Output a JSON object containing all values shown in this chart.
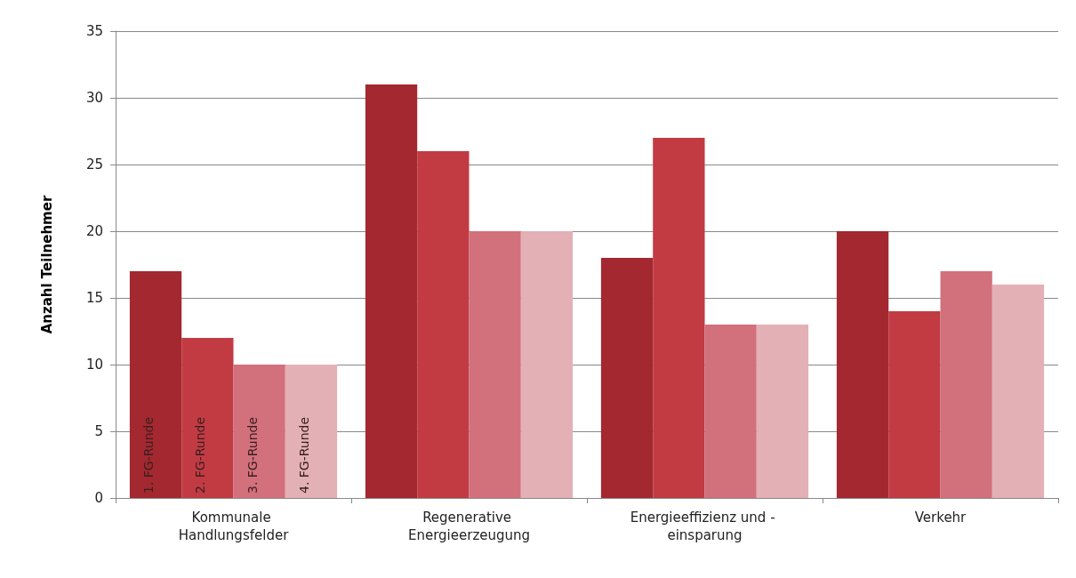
{
  "chart_data": {
    "type": "bar",
    "ylabel": "Anzahl Teilnehmer",
    "categories": [
      "Kommunale Handlungsfelder",
      "Regenerative Energieerzeugung",
      "Energieeffizienz und - einsparung",
      "Verkehr"
    ],
    "series": [
      {
        "name": "1. FG-Runde",
        "color": "#a3282f",
        "values": [
          17,
          31,
          18,
          20
        ]
      },
      {
        "name": "2. FG-Runde",
        "color": "#c23b43",
        "values": [
          12,
          26,
          27,
          14
        ]
      },
      {
        "name": "3. FG-Runde",
        "color": "#d2707c",
        "values": [
          10,
          20,
          13,
          17
        ]
      },
      {
        "name": "4. FG-Runde",
        "color": "#e3b0b6",
        "values": [
          10,
          20,
          13,
          16
        ]
      }
    ],
    "ylim": [
      0,
      35
    ],
    "yticks": [
      0,
      5,
      10,
      15,
      20,
      25,
      30,
      35
    ],
    "grid": "y",
    "legend": false
  }
}
